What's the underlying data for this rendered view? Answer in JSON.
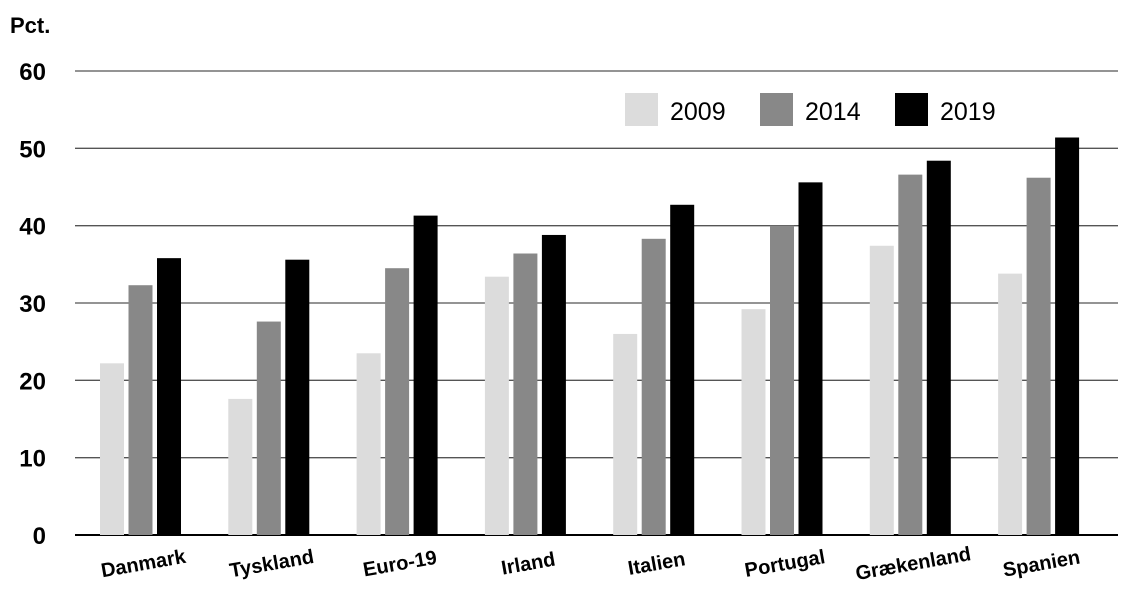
{
  "chart_data": {
    "type": "bar",
    "ylabel": "Pct.",
    "xlabel": "",
    "ylim": [
      0,
      60
    ],
    "yticks": [
      "0",
      "10",
      "20",
      "30",
      "40",
      "50",
      "60"
    ],
    "grid": true,
    "legend_position": "top-right",
    "categories": [
      "Danmark",
      "Tyskland",
      "Euro-19",
      "Irland",
      "Italien",
      "Portugal",
      "Grækenland",
      "Spanien"
    ],
    "series": [
      {
        "name": "2009",
        "color": "#dcdcdc",
        "values": [
          22.2,
          17.6,
          23.5,
          33.4,
          26.0,
          29.2,
          37.4,
          33.8
        ]
      },
      {
        "name": "2014",
        "color": "#888888",
        "values": [
          32.3,
          27.6,
          34.5,
          36.4,
          38.3,
          40.0,
          46.6,
          46.2
        ]
      },
      {
        "name": "2019",
        "color": "#000000",
        "values": [
          35.8,
          35.6,
          41.3,
          38.8,
          42.7,
          45.6,
          48.4,
          51.4
        ]
      }
    ]
  }
}
